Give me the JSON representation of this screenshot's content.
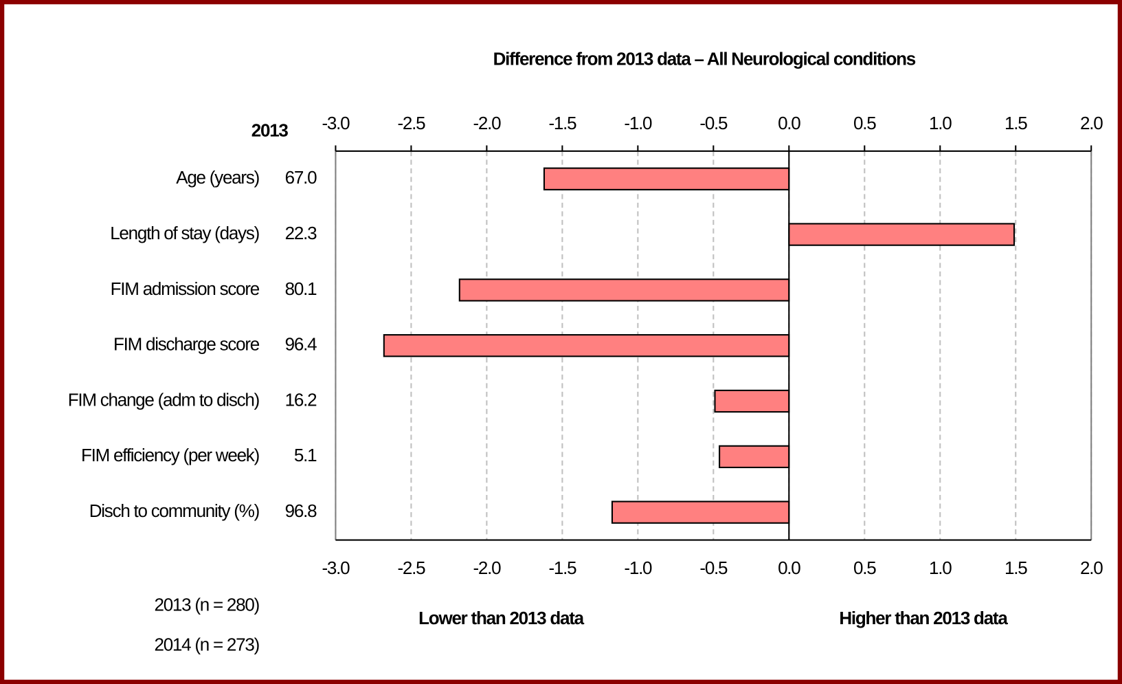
{
  "chart_data": {
    "type": "bar",
    "orientation": "horizontal",
    "title": "Difference from 2013 data – All Neurological conditions",
    "column_header": "2013",
    "categories": [
      "Age (years)",
      "Length of stay (days)",
      "FIM admission score",
      "FIM discharge score",
      "FIM change (adm to disch)",
      "FIM efficiency (per week)",
      "Disch to community (%)"
    ],
    "reference_values": [
      "67.0",
      "22.3",
      "80.1",
      "96.4",
      "16.2",
      "5.1",
      "96.8"
    ],
    "values": [
      -1.62,
      1.49,
      -2.18,
      -2.68,
      -0.49,
      -0.46,
      -1.17
    ],
    "color": "#ff8080",
    "xlim": [
      -3,
      2
    ],
    "xticks": [
      {
        "value": -3,
        "label": "-3.0"
      },
      {
        "value": -2.5,
        "label": "-2.5"
      },
      {
        "value": -2,
        "label": "-2.0"
      },
      {
        "value": -1.5,
        "label": "-1.5"
      },
      {
        "value": -1,
        "label": "-1.0"
      },
      {
        "value": -0.5,
        "label": "-0.5"
      },
      {
        "value": 0,
        "label": "0.0"
      },
      {
        "value": 0.5,
        "label": "0.5"
      },
      {
        "value": 1,
        "label": "1.0"
      },
      {
        "value": 1.5,
        "label": "1.5"
      },
      {
        "value": 2,
        "label": "2.0"
      }
    ],
    "grid": true,
    "annotations": [
      "Lower than 2013 data",
      "Higher than 2013 data"
    ],
    "notes": [
      "2013  (n = 280)",
      "2014  (n = 273)"
    ]
  }
}
